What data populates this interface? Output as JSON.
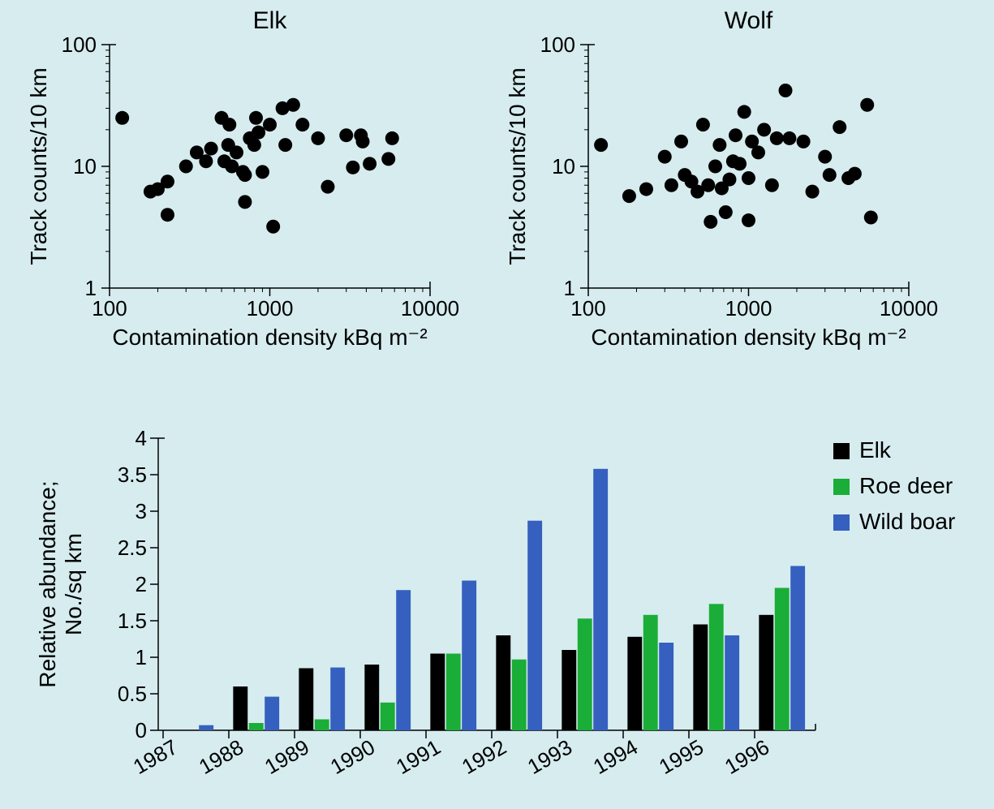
{
  "background_color": "#d6ecef",
  "scatter_shared": {
    "type": "scatter",
    "xscale": "log",
    "yscale": "log",
    "xlim": [
      100,
      10000
    ],
    "ylim": [
      1,
      100
    ],
    "xticks": [
      100,
      1000,
      10000
    ],
    "xtick_labels": [
      "100",
      "1000",
      "10000"
    ],
    "yticks": [
      1,
      10,
      100
    ],
    "ytick_labels": [
      "1",
      "10",
      "100"
    ],
    "xlabel": "Contamination density kBq m⁻²",
    "ylabel": "Track counts/10 km",
    "marker_color": "#000000",
    "marker_radius": 8.5,
    "axis_color": "#000000",
    "tick_length": 10,
    "tick_fontsize": 26,
    "label_fontsize": 28,
    "title_fontsize": 30,
    "plot_bg": "#d6ecef",
    "minor_ticks": true
  },
  "scatter_elk": {
    "title": "Elk",
    "points": [
      [
        120,
        25
      ],
      [
        180,
        6.2
      ],
      [
        200,
        6.5
      ],
      [
        230,
        7.5
      ],
      [
        230,
        4.0
      ],
      [
        300,
        10
      ],
      [
        350,
        13
      ],
      [
        400,
        11
      ],
      [
        430,
        14
      ],
      [
        500,
        25
      ],
      [
        520,
        11
      ],
      [
        550,
        15
      ],
      [
        560,
        22
      ],
      [
        580,
        10
      ],
      [
        620,
        13
      ],
      [
        680,
        9
      ],
      [
        700,
        8.5
      ],
      [
        700,
        5.1
      ],
      [
        750,
        17
      ],
      [
        800,
        15
      ],
      [
        820,
        25
      ],
      [
        850,
        19
      ],
      [
        900,
        9
      ],
      [
        1000,
        22
      ],
      [
        1050,
        3.2
      ],
      [
        1200,
        30
      ],
      [
        1250,
        15
      ],
      [
        1400,
        32
      ],
      [
        1600,
        22
      ],
      [
        2000,
        17
      ],
      [
        2300,
        6.8
      ],
      [
        3000,
        18
      ],
      [
        3300,
        9.8
      ],
      [
        3700,
        18
      ],
      [
        3800,
        16
      ],
      [
        4200,
        10.5
      ],
      [
        5500,
        11.5
      ],
      [
        5800,
        17
      ]
    ]
  },
  "scatter_wolf": {
    "title": "Wolf",
    "points": [
      [
        120,
        15
      ],
      [
        180,
        5.7
      ],
      [
        230,
        6.5
      ],
      [
        300,
        12
      ],
      [
        330,
        7
      ],
      [
        380,
        16
      ],
      [
        400,
        8.5
      ],
      [
        440,
        7.5
      ],
      [
        480,
        6.2
      ],
      [
        520,
        22
      ],
      [
        560,
        7
      ],
      [
        580,
        3.5
      ],
      [
        620,
        10
      ],
      [
        660,
        15
      ],
      [
        680,
        6.6
      ],
      [
        720,
        4.2
      ],
      [
        760,
        7.8
      ],
      [
        800,
        11
      ],
      [
        830,
        18
      ],
      [
        880,
        10.5
      ],
      [
        940,
        28
      ],
      [
        1000,
        8
      ],
      [
        1000,
        3.6
      ],
      [
        1050,
        16
      ],
      [
        1150,
        13
      ],
      [
        1250,
        20
      ],
      [
        1400,
        7
      ],
      [
        1500,
        17
      ],
      [
        1700,
        42
      ],
      [
        1800,
        17
      ],
      [
        2200,
        16
      ],
      [
        2500,
        6.2
      ],
      [
        3000,
        12
      ],
      [
        3200,
        8.5
      ],
      [
        3700,
        21
      ],
      [
        4200,
        8
      ],
      [
        4600,
        8.7
      ],
      [
        5500,
        32
      ],
      [
        5800,
        3.8
      ]
    ]
  },
  "bar_chart": {
    "type": "bar",
    "categories": [
      "1987",
      "1988",
      "1989",
      "1990",
      "1991",
      "1992",
      "1993",
      "1994",
      "1995",
      "1996"
    ],
    "series": [
      {
        "name": "Elk",
        "color": "#000000",
        "values": [
          0.0,
          0.6,
          0.85,
          0.9,
          1.05,
          1.3,
          1.1,
          1.28,
          1.45,
          1.58
        ]
      },
      {
        "name": "Roe deer",
        "color": "#1aad37",
        "values": [
          0.0,
          0.1,
          0.15,
          0.38,
          1.05,
          0.97,
          1.53,
          1.58,
          1.73,
          1.95
        ]
      },
      {
        "name": "Wild boar",
        "color": "#3560bf",
        "values": [
          0.07,
          0.46,
          0.86,
          1.92,
          2.05,
          2.87,
          3.58,
          1.2,
          1.3,
          2.25
        ]
      }
    ],
    "ylabel": "Relative abundance;\nNo./sq km",
    "ylim": [
      0,
      4
    ],
    "ytick_step": 0.5,
    "bar_group_width": 0.72,
    "axis_color": "#000000",
    "tick_fontsize": 26,
    "label_fontsize": 28,
    "legend_fontsize": 28,
    "legend_box_size": 20,
    "x_label_rotation": -30
  }
}
